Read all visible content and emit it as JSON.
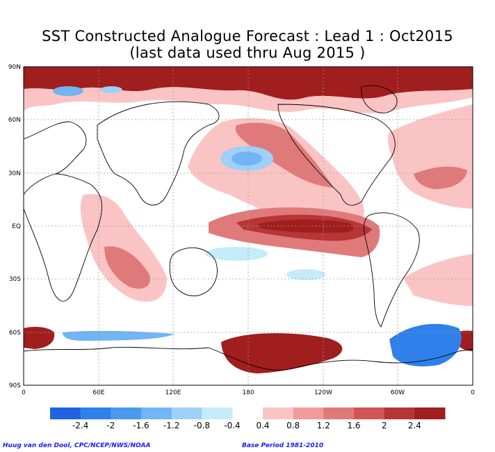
{
  "title_line1": "SST Constructed Analogue Forecast : Lead 1 : Oct2015",
  "title_line2": "(last data used thru Aug 2015 )",
  "lat_labels": [
    "90N",
    "60N",
    "30N",
    "EQ",
    "30S",
    "60S",
    "90S"
  ],
  "lon_labels": [
    "0",
    "60E",
    "120E",
    "180",
    "120W",
    "60W",
    "0"
  ],
  "colorbar": {
    "negative_colors": [
      "#1f63e0",
      "#2f80ea",
      "#4a9af0",
      "#72b4f4",
      "#9fd0f8",
      "#c4ecfb"
    ],
    "positive_colors": [
      "#fbc4c4",
      "#f09a9a",
      "#e07a7a",
      "#d25555",
      "#b83535",
      "#a01e1e"
    ],
    "negative_labels": [
      "-2.4",
      "-2",
      "-1.6",
      "-1.2",
      "-0.8",
      "-0.4"
    ],
    "positive_labels": [
      "0.4",
      "0.8",
      "1.2",
      "1.6",
      "2",
      "2.4"
    ]
  },
  "credit_left": "Huug van den Dool, CPC/NCEP/NWS/NOAA",
  "credit_right": "Base Period 1981-2010"
}
